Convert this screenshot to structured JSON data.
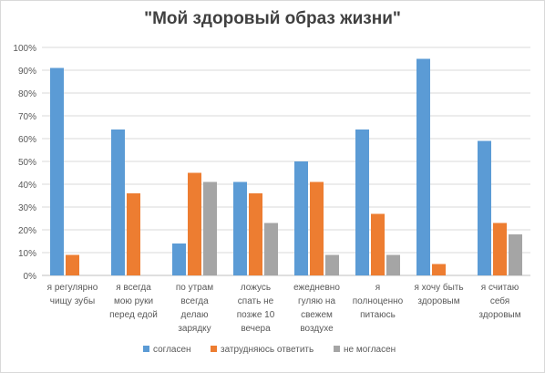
{
  "chart_data": {
    "type": "bar",
    "title": "\"Мой здоровый образ жизни\"",
    "categories": [
      [
        "я регулярно",
        "чищу зубы"
      ],
      [
        "я всегда",
        "мою руки",
        "перед едой"
      ],
      [
        "по утрам",
        "всегда",
        "делаю",
        "зарядку"
      ],
      [
        "ложусь",
        "спать не",
        "позже 10",
        "вечера"
      ],
      [
        "ежедневно",
        "гуляю на",
        "свежем",
        "воздухе"
      ],
      [
        "я",
        "полноценно",
        "питаюсь"
      ],
      [
        "я хочу быть",
        "здоровым"
      ],
      [
        "я считаю",
        "себя",
        "здоровым"
      ]
    ],
    "series": [
      {
        "name": "согласен",
        "color": "#5b9bd5",
        "values": [
          91,
          64,
          14,
          41,
          50,
          64,
          95,
          59
        ]
      },
      {
        "name": "затрудняюсь ответить",
        "color": "#ed7d31",
        "values": [
          9,
          36,
          45,
          36,
          41,
          27,
          5,
          23
        ]
      },
      {
        "name": "не могласен",
        "color": "#a5a5a5",
        "values": [
          0,
          0,
          41,
          23,
          9,
          9,
          0,
          18
        ]
      }
    ],
    "ylim": [
      0,
      100
    ],
    "yticks": [
      "0%",
      "10%",
      "20%",
      "30%",
      "40%",
      "50%",
      "60%",
      "70%",
      "80%",
      "90%",
      "100%"
    ],
    "grid": true,
    "legend": "bottom"
  }
}
